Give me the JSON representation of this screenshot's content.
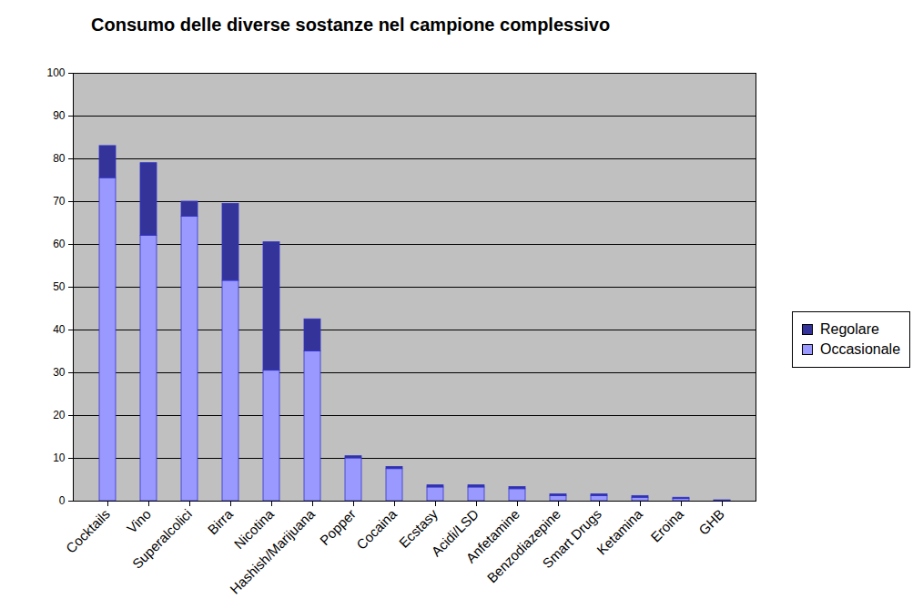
{
  "chart_data": {
    "type": "bar",
    "stacked": true,
    "title": "Consumo delle diverse sostanze nel campione complessivo",
    "categories": [
      "Cocktails",
      "Vino",
      "Superalcolici",
      "Birra",
      "Nicotina",
      "Hashish/Marijuana",
      "Popper",
      "Cocaina",
      "Ecstasy",
      "Acidi/LSD",
      "Anfetamine",
      "Benzodiazepine",
      "Smart Drugs",
      "Ketamina",
      "Eroina",
      "GHB"
    ],
    "series": [
      {
        "name": "Occasionale",
        "color": "#9999ff",
        "values": [
          75.5,
          62,
          66.5,
          51.5,
          30.5,
          35,
          10,
          7.5,
          3.2,
          3.2,
          2.8,
          1.2,
          1.2,
          0.8,
          0.5,
          0.1
        ]
      },
      {
        "name": "Regolare",
        "color": "#333399",
        "values": [
          7.5,
          17,
          3.5,
          18,
          30,
          7.5,
          0.5,
          0.5,
          0.5,
          0.5,
          0.5,
          0.4,
          0.4,
          0.4,
          0.3,
          0.1
        ]
      }
    ],
    "ylim": [
      0,
      100
    ],
    "yticks": [
      0,
      10,
      20,
      30,
      40,
      50,
      60,
      70,
      80,
      90,
      100
    ],
    "grid": true,
    "legend": "right"
  }
}
